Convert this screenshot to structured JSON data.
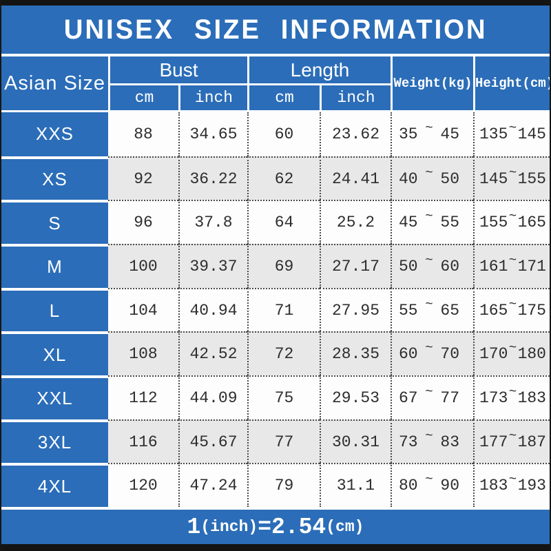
{
  "title": "UNISEX SIZE INFORMATION",
  "colors": {
    "blue": "#2b6db8",
    "row_white": "#fdfdfd",
    "row_gray": "#e8e8e8",
    "text_dark": "#2d2d2d",
    "header_text": "#ffffff",
    "border_black": "#141414"
  },
  "table": {
    "size_col_header": "Asian Size",
    "groups": [
      {
        "label": "Bust",
        "sub": [
          "cm",
          "inch"
        ]
      },
      {
        "label": "Length",
        "sub": [
          "cm",
          "inch"
        ]
      }
    ],
    "single_headers": [
      "Weight(kg)",
      "Height(cm)"
    ],
    "range_separator": "~",
    "rows": [
      {
        "size": "XXS",
        "bust_cm": "88",
        "bust_inch": "34.65",
        "length_cm": "60",
        "length_inch": "23.62",
        "weight_min": "35",
        "weight_max": "45",
        "height_min": "135",
        "height_max": "145"
      },
      {
        "size": "XS",
        "bust_cm": "92",
        "bust_inch": "36.22",
        "length_cm": "62",
        "length_inch": "24.41",
        "weight_min": "40",
        "weight_max": "50",
        "height_min": "145",
        "height_max": "155"
      },
      {
        "size": "S",
        "bust_cm": "96",
        "bust_inch": "37.8",
        "length_cm": "64",
        "length_inch": "25.2",
        "weight_min": "45",
        "weight_max": "55",
        "height_min": "155",
        "height_max": "165"
      },
      {
        "size": "M",
        "bust_cm": "100",
        "bust_inch": "39.37",
        "length_cm": "69",
        "length_inch": "27.17",
        "weight_min": "50",
        "weight_max": "60",
        "height_min": "161",
        "height_max": "171"
      },
      {
        "size": "L",
        "bust_cm": "104",
        "bust_inch": "40.94",
        "length_cm": "71",
        "length_inch": "27.95",
        "weight_min": "55",
        "weight_max": "65",
        "height_min": "165",
        "height_max": "175"
      },
      {
        "size": "XL",
        "bust_cm": "108",
        "bust_inch": "42.52",
        "length_cm": "72",
        "length_inch": "28.35",
        "weight_min": "60",
        "weight_max": "70",
        "height_min": "170",
        "height_max": "180"
      },
      {
        "size": "XXL",
        "bust_cm": "112",
        "bust_inch": "44.09",
        "length_cm": "75",
        "length_inch": "29.53",
        "weight_min": "67",
        "weight_max": "77",
        "height_min": "173",
        "height_max": "183"
      },
      {
        "size": "3XL",
        "bust_cm": "116",
        "bust_inch": "45.67",
        "length_cm": "77",
        "length_inch": "30.31",
        "weight_min": "73",
        "weight_max": "83",
        "height_min": "177",
        "height_max": "187"
      },
      {
        "size": "4XL",
        "bust_cm": "120",
        "bust_inch": "47.24",
        "length_cm": "79",
        "length_inch": "31.1",
        "weight_min": "80",
        "weight_max": "90",
        "height_min": "183",
        "height_max": "193"
      }
    ]
  },
  "footer": {
    "parts": [
      {
        "text": "1",
        "size": "big"
      },
      {
        "text": "(inch)",
        "size": "small"
      },
      {
        "text": "=2.54",
        "size": "big"
      },
      {
        "text": "(cm)",
        "size": "small"
      }
    ]
  }
}
